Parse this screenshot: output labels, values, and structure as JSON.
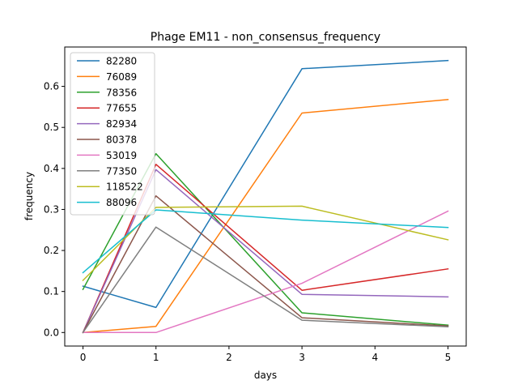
{
  "chart_data": {
    "type": "line",
    "title": "Phage EM11 - non_consensus_frequency",
    "xlabel": "days",
    "ylabel": "frequency",
    "x": [
      0,
      1,
      3,
      5
    ],
    "xlim": [
      -0.25,
      5.25
    ],
    "ylim": [
      -0.033,
      0.696
    ],
    "xticks": [
      0,
      1,
      2,
      3,
      4,
      5
    ],
    "xtick_labels": [
      "0",
      "1",
      "2",
      "3",
      "4",
      "5"
    ],
    "yticks": [
      0.0,
      0.1,
      0.2,
      0.3,
      0.4,
      0.5,
      0.6
    ],
    "ytick_labels": [
      "0.0",
      "0.1",
      "0.2",
      "0.3",
      "0.4",
      "0.5",
      "0.6"
    ],
    "grid": false,
    "legend_position": "top-left",
    "series": [
      {
        "name": "82280",
        "color": "#1f77b4",
        "values": [
          0.113,
          0.061,
          0.643,
          0.663
        ]
      },
      {
        "name": "76089",
        "color": "#ff7f0e",
        "values": [
          0.0,
          0.015,
          0.535,
          0.568
        ]
      },
      {
        "name": "78356",
        "color": "#2ca02c",
        "values": [
          0.105,
          0.436,
          0.048,
          0.018
        ]
      },
      {
        "name": "77655",
        "color": "#d62728",
        "values": [
          0.0,
          0.41,
          0.103,
          0.155
        ]
      },
      {
        "name": "82934",
        "color": "#9467bd",
        "values": [
          0.0,
          0.397,
          0.093,
          0.087
        ]
      },
      {
        "name": "80378",
        "color": "#8c564b",
        "values": [
          0.0,
          0.333,
          0.036,
          0.016
        ]
      },
      {
        "name": "53019",
        "color": "#e377c2",
        "values": [
          0.0,
          0.0,
          0.12,
          0.296
        ]
      },
      {
        "name": "77350",
        "color": "#7f7f7f",
        "values": [
          0.0,
          0.257,
          0.03,
          0.014
        ]
      },
      {
        "name": "118522",
        "color": "#bcbd22",
        "values": [
          0.127,
          0.305,
          0.308,
          0.226
        ]
      },
      {
        "name": "88096",
        "color": "#17becf",
        "values": [
          0.146,
          0.299,
          0.274,
          0.256
        ]
      }
    ]
  }
}
